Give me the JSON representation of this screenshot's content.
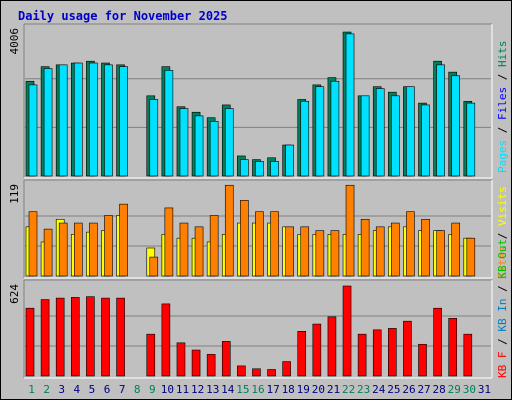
{
  "chart_data": {
    "type": "bar",
    "title": "Daily usage for November 2025",
    "days": [
      "1",
      "2",
      "3",
      "4",
      "5",
      "6",
      "7",
      "8",
      "9",
      "10",
      "11",
      "12",
      "13",
      "14",
      "15",
      "16",
      "17",
      "18",
      "19",
      "20",
      "21",
      "22",
      "23",
      "24",
      "25",
      "26",
      "27",
      "28",
      "29",
      "30",
      "31"
    ],
    "weekend_days": [
      "1",
      "2",
      "8",
      "9",
      "15",
      "16",
      "22",
      "23",
      "29",
      "30"
    ],
    "panels": [
      {
        "name": "hits-files-pages",
        "max_label": "4006",
        "max": 4006,
        "series": [
          {
            "name": "Hits",
            "color": "#00805c",
            "values": [
              2600,
              3000,
              3050,
              3100,
              3150,
              3100,
              3050,
              null,
              2200,
              3000,
              1900,
              1750,
              1600,
              1950,
              550,
              450,
              500,
              850,
              2100,
              2500,
              2700,
              3950,
              2200,
              2450,
              2300,
              2450,
              2000,
              3150,
              2850,
              2050,
              null
            ]
          },
          {
            "name": "Files",
            "color": "#0000ff",
            "values": [
              null,
              null,
              null,
              null,
              null,
              null,
              null,
              null,
              null,
              null,
              null,
              null,
              null,
              null,
              null,
              null,
              null,
              null,
              null,
              null,
              null,
              null,
              null,
              null,
              null,
              null,
              null,
              null,
              null,
              null,
              null
            ]
          },
          {
            "name": "Pages",
            "color": "#00e0ff",
            "values": [
              2500,
              2950,
              3050,
              3100,
              3100,
              3050,
              3000,
              null,
              2100,
              2900,
              1850,
              1650,
              1500,
              1850,
              450,
              400,
              400,
              850,
              2050,
              2450,
              2600,
              3900,
              2200,
              2400,
              2200,
              2450,
              1950,
              3050,
              2750,
              2000,
              null
            ]
          }
        ]
      },
      {
        "name": "visits-sites",
        "max_label": "119",
        "max": 119,
        "series": [
          {
            "name": "Visits",
            "color": "#ffff00",
            "values": [
              65,
              45,
              75,
              55,
              58,
              60,
              80,
              null,
              37,
              55,
              50,
              50,
              45,
              55,
              70,
              70,
              70,
              65,
              55,
              55,
              55,
              55,
              55,
              60,
              65,
              65,
              60,
              60,
              55,
              50,
              null
            ]
          },
          {
            "name": "Sites",
            "color": "#ff8000",
            "values": [
              85,
              62,
              70,
              70,
              70,
              80,
              95,
              null,
              25,
              90,
              70,
              65,
              80,
              120,
              100,
              85,
              85,
              65,
              65,
              60,
              60,
              120,
              75,
              65,
              70,
              85,
              75,
              60,
              70,
              50,
              null
            ]
          }
        ]
      },
      {
        "name": "kbf-in-out",
        "max_label": "624",
        "max": 624,
        "series": [
          {
            "name": "KB F",
            "color": "#ff0000",
            "values": [
              470,
              530,
              540,
              545,
              550,
              540,
              540,
              null,
              290,
              500,
              230,
              180,
              150,
              240,
              70,
              50,
              45,
              100,
              310,
              360,
              410,
              624,
              290,
              320,
              330,
              380,
              220,
              470,
              400,
              290,
              null
            ]
          },
          {
            "name": "KB In",
            "color": "#0080c0",
            "values": [
              null,
              null,
              null,
              null,
              null,
              null,
              null,
              null,
              null,
              null,
              null,
              null,
              null,
              null,
              null,
              null,
              null,
              null,
              null,
              null,
              null,
              null,
              null,
              null,
              null,
              null,
              null,
              null,
              null,
              null,
              null
            ]
          },
          {
            "name": "KB Out",
            "color": "#00c000",
            "values": [
              null,
              null,
              null,
              null,
              null,
              null,
              null,
              null,
              null,
              null,
              null,
              null,
              null,
              null,
              null,
              null,
              null,
              null,
              null,
              null,
              null,
              null,
              null,
              null,
              null,
              null,
              null,
              null,
              null,
              null,
              null
            ]
          }
        ]
      }
    ],
    "legend_right": [
      {
        "text": "Pages",
        "color": "#00e0ff"
      },
      {
        "text": " / ",
        "color": "#000000"
      },
      {
        "text": "Files",
        "color": "#0000ff"
      },
      {
        "text": " / ",
        "color": "#000000"
      },
      {
        "text": "Hits",
        "color": "#00805c"
      },
      {
        "text": "Visits",
        "color": "#ffff00"
      },
      {
        "text": " / ",
        "color": "#000000"
      },
      {
        "text": "Sites",
        "color": "#ff8000"
      },
      {
        "text": "KB F",
        "color": "#ff0000"
      },
      {
        "text": " / ",
        "color": "#000000"
      },
      {
        "text": "KB In",
        "color": "#0080c0"
      },
      {
        "text": " / ",
        "color": "#000000"
      },
      {
        "text": "KB Out",
        "color": "#00c000"
      }
    ],
    "colors": {
      "background": "#c0c0c0",
      "title": "#0000cc",
      "weekday_label": "#000080",
      "weekend_label": "#00805c"
    }
  }
}
